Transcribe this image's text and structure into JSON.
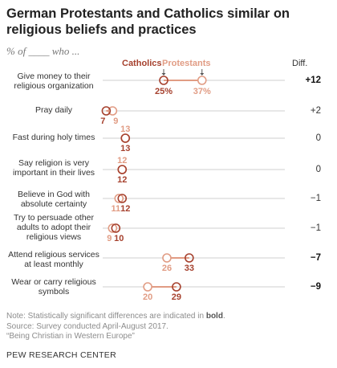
{
  "header": {
    "title": "German Protestants and Catholics similar on religious beliefs and practices",
    "subtitle": "% of ____ who ...",
    "legend_catholics": "Catholics",
    "legend_protestants": "Protestants",
    "diff_header": "Diff."
  },
  "colors": {
    "catholics": "#a6412e",
    "protestants": "#e19c84",
    "line": "#cfcfcf"
  },
  "chart_data": {
    "type": "dot",
    "xlim": [
      0,
      100
    ],
    "series": [
      {
        "name": "Catholics",
        "values": [
          25,
          7,
          13,
          12,
          12,
          10,
          33,
          29
        ]
      },
      {
        "name": "Protestants",
        "values": [
          37,
          9,
          13,
          12,
          11,
          9,
          26,
          20
        ]
      }
    ],
    "rows": [
      {
        "label": "Give money to their religious organization",
        "catholics": 25,
        "protestants": 37,
        "cath_label": "25%",
        "prot_label": "37%",
        "diff": "+12",
        "significant": true
      },
      {
        "label": "Pray daily",
        "catholics": 7,
        "protestants": 9,
        "cath_label": "7",
        "prot_label": "9",
        "diff": "+2",
        "significant": false
      },
      {
        "label": "Fast during holy times",
        "catholics": 13,
        "protestants": 13,
        "cath_label": "13",
        "prot_label": "13",
        "diff": "0",
        "significant": false
      },
      {
        "label": "Say religion is very important in their lives",
        "catholics": 12,
        "protestants": 12,
        "cath_label": "12",
        "prot_label": "12",
        "diff": "0",
        "significant": false
      },
      {
        "label": "Believe in God with absolute certainty",
        "catholics": 12,
        "protestants": 11,
        "cath_label": "12",
        "prot_label": "11",
        "diff": "−1",
        "significant": false
      },
      {
        "label": "Try to persuade other adults to adopt their religious views",
        "catholics": 10,
        "protestants": 9,
        "cath_label": "10",
        "prot_label": "9",
        "diff": "−1",
        "significant": false
      },
      {
        "label": "Attend religious services at least monthly",
        "catholics": 33,
        "protestants": 26,
        "cath_label": "33",
        "prot_label": "26",
        "diff": "−7",
        "significant": true
      },
      {
        "label": "Wear or carry religious symbols",
        "catholics": 29,
        "protestants": 20,
        "cath_label": "29",
        "prot_label": "20",
        "diff": "−9",
        "significant": true
      }
    ]
  },
  "footer": {
    "note_prefix": "Note: Statistically significant differences are indicated in ",
    "note_bold": "bold",
    "note_suffix": ".",
    "source": "Source: Survey conducted April-August 2017.",
    "report": "“Being Christian in Western Europe”",
    "org": "PEW RESEARCH CENTER"
  }
}
